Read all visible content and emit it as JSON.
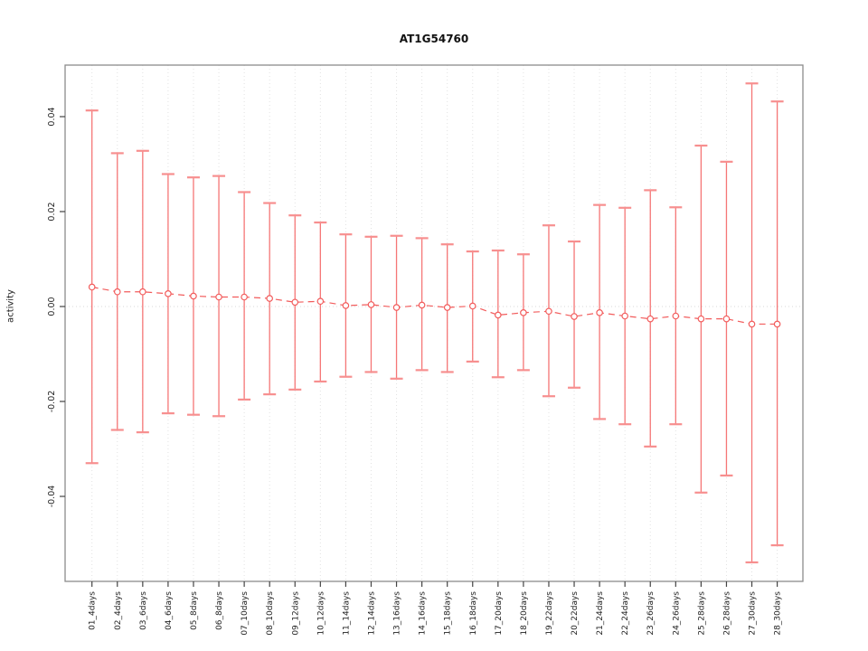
{
  "chart_data": {
    "type": "line",
    "subtype": "points-with-error-bars",
    "title": "AT1G54760",
    "xlabel": "",
    "ylabel": "activity",
    "ylim": [
      -0.058,
      0.051
    ],
    "yticks": [
      0.04,
      0.02,
      0.0,
      -0.02,
      -0.04
    ],
    "ytick_labels": [
      "0.04",
      "0.02",
      "0.00",
      "-0.02",
      "-0.04"
    ],
    "grid": "vertical dotted gridline at each category; dotted horizontal line at y=0",
    "legend_position": "none",
    "categories": [
      "01_4days",
      "02_4days",
      "03_6days",
      "04_6days",
      "05_8days",
      "06_8days",
      "07_10days",
      "08_10days",
      "09_12days",
      "10_12days",
      "11_14days",
      "12_14days",
      "13_16days",
      "14_16days",
      "15_18days",
      "16_18days",
      "17_20days",
      "18_20days",
      "19_22days",
      "20_22days",
      "21_24days",
      "22_24days",
      "23_26days",
      "24_26days",
      "25_28days",
      "26_28days",
      "27_30days",
      "28_30days"
    ],
    "series": [
      {
        "name": "activity (center)",
        "values": [
          0.0041,
          0.0031,
          0.0031,
          0.0027,
          0.0022,
          0.002,
          0.002,
          0.0017,
          0.0009,
          0.0011,
          0.0002,
          0.0004,
          -0.0002,
          0.0003,
          -0.0002,
          0.0001,
          -0.0018,
          -0.0013,
          -0.001,
          -0.0021,
          -0.0013,
          -0.002,
          -0.0026,
          -0.002,
          -0.0026,
          -0.0026,
          -0.0037,
          -0.0037
        ]
      },
      {
        "name": "upper error bound",
        "values": [
          0.0413,
          0.0323,
          0.0328,
          0.0279,
          0.0272,
          0.0275,
          0.0241,
          0.0218,
          0.0192,
          0.0177,
          0.0152,
          0.0147,
          0.0149,
          0.0144,
          0.0131,
          0.0116,
          0.0118,
          0.011,
          0.0171,
          0.0137,
          0.0214,
          0.0208,
          0.0245,
          0.0209,
          0.0339,
          0.0305,
          0.047,
          0.0432
        ]
      },
      {
        "name": "lower error bound",
        "values": [
          -0.033,
          -0.026,
          -0.0265,
          -0.0225,
          -0.0228,
          -0.0231,
          -0.0196,
          -0.0185,
          -0.0175,
          -0.0158,
          -0.0148,
          -0.0138,
          -0.0152,
          -0.0134,
          -0.0138,
          -0.0116,
          -0.0149,
          -0.0134,
          -0.0189,
          -0.0171,
          -0.0237,
          -0.0248,
          -0.0295,
          -0.0248,
          -0.0392,
          -0.0356,
          -0.0539,
          -0.0503
        ]
      }
    ]
  },
  "colors": {
    "error_bar_line": "#f57676",
    "error_bar_cap": "#f78f8f",
    "connector_dash": "#f25c5c",
    "point_stroke": "#f25c5c",
    "point_fill": "#ffffff",
    "grid_line": "#e2e2e2",
    "zero_line": "#d9d9d9",
    "box_border": "#8c8c8c",
    "tick_mark": "#444444",
    "tick_text": "#222222"
  }
}
